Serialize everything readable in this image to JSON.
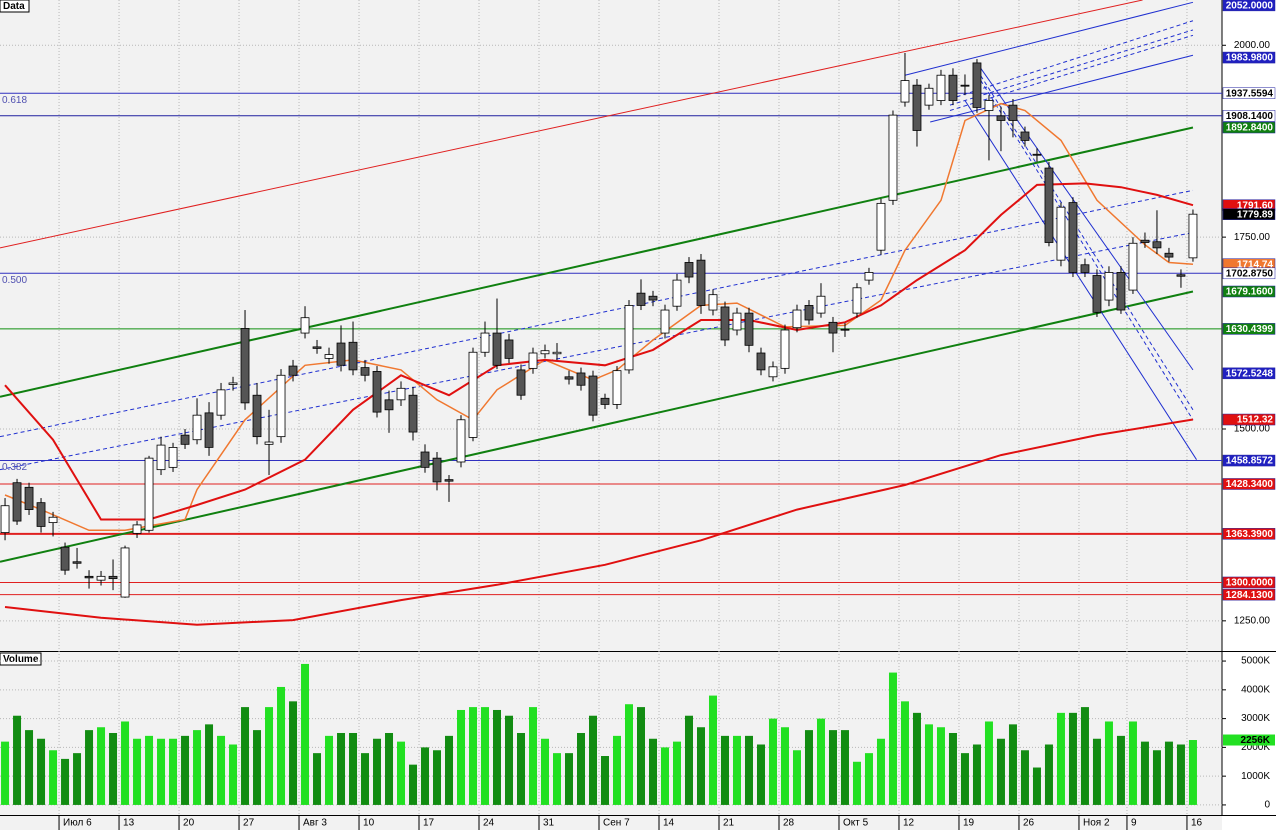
{
  "chart_data": {
    "type": "candlestick",
    "title": "Data",
    "up_color": "#ffffff",
    "down_color": "#555555",
    "candles": [
      [
        1365,
        1410,
        1355,
        1400
      ],
      [
        1430,
        1435,
        1375,
        1380
      ],
      [
        1424,
        1430,
        1388,
        1395
      ],
      [
        1404,
        1410,
        1365,
        1373
      ],
      [
        1378,
        1392,
        1360,
        1385
      ],
      [
        1346,
        1352,
        1310,
        1316
      ],
      [
        1327,
        1345,
        1318,
        1325
      ],
      [
        1308,
        1316,
        1292,
        1306
      ],
      [
        1303,
        1315,
        1296,
        1308
      ],
      [
        1308,
        1330,
        1290,
        1305
      ],
      [
        1281,
        1348,
        1280,
        1345
      ],
      [
        1364,
        1380,
        1358,
        1375
      ],
      [
        1368,
        1465,
        1365,
        1462
      ],
      [
        1447,
        1490,
        1440,
        1479
      ],
      [
        1450,
        1482,
        1444,
        1476
      ],
      [
        1492,
        1500,
        1474,
        1480
      ],
      [
        1486,
        1540,
        1480,
        1518
      ],
      [
        1521,
        1535,
        1465,
        1476
      ],
      [
        1518,
        1560,
        1512,
        1551
      ],
      [
        1558,
        1568,
        1550,
        1560
      ],
      [
        1631,
        1655,
        1525,
        1534
      ],
      [
        1544,
        1560,
        1480,
        1490
      ],
      [
        1480,
        1525,
        1440,
        1483
      ],
      [
        1490,
        1578,
        1482,
        1570
      ],
      [
        1582,
        1590,
        1562,
        1570
      ],
      [
        1625,
        1660,
        1618,
        1645
      ],
      [
        1607,
        1616,
        1598,
        1605
      ],
      [
        1592,
        1606,
        1585,
        1597
      ],
      [
        1612,
        1635,
        1575,
        1583
      ],
      [
        1613,
        1640,
        1570,
        1577
      ],
      [
        1580,
        1590,
        1562,
        1570
      ],
      [
        1575,
        1582,
        1515,
        1522
      ],
      [
        1538,
        1550,
        1495,
        1525
      ],
      [
        1538,
        1562,
        1530,
        1553
      ],
      [
        1544,
        1555,
        1485,
        1496
      ],
      [
        1470,
        1480,
        1443,
        1450
      ],
      [
        1462,
        1470,
        1420,
        1431
      ],
      [
        1434,
        1440,
        1405,
        1432
      ],
      [
        1457,
        1518,
        1450,
        1512
      ],
      [
        1489,
        1606,
        1484,
        1600
      ],
      [
        1600,
        1640,
        1594,
        1625
      ],
      [
        1625,
        1670,
        1578,
        1583
      ],
      [
        1616,
        1624,
        1586,
        1592
      ],
      [
        1577,
        1584,
        1538,
        1544
      ],
      [
        1579,
        1606,
        1572,
        1599
      ],
      [
        1598,
        1610,
        1592,
        1602
      ],
      [
        1598,
        1612,
        1590,
        1600
      ],
      [
        1568,
        1576,
        1558,
        1565
      ],
      [
        1573,
        1580,
        1550,
        1557
      ],
      [
        1569,
        1576,
        1510,
        1518
      ],
      [
        1540,
        1546,
        1526,
        1532
      ],
      [
        1532,
        1582,
        1526,
        1576
      ],
      [
        1577,
        1668,
        1572,
        1661
      ],
      [
        1677,
        1695,
        1655,
        1661
      ],
      [
        1673,
        1680,
        1660,
        1668
      ],
      [
        1625,
        1662,
        1618,
        1655
      ],
      [
        1660,
        1702,
        1654,
        1694
      ],
      [
        1717,
        1724,
        1690,
        1698
      ],
      [
        1720,
        1728,
        1650,
        1661
      ],
      [
        1655,
        1682,
        1648,
        1675
      ],
      [
        1659,
        1666,
        1608,
        1616
      ],
      [
        1629,
        1658,
        1622,
        1651
      ],
      [
        1651,
        1658,
        1600,
        1609
      ],
      [
        1599,
        1606,
        1570,
        1577
      ],
      [
        1568,
        1588,
        1562,
        1581
      ],
      [
        1579,
        1636,
        1572,
        1629
      ],
      [
        1632,
        1662,
        1626,
        1655
      ],
      [
        1661,
        1668,
        1636,
        1642
      ],
      [
        1651,
        1690,
        1645,
        1673
      ],
      [
        1639,
        1646,
        1600,
        1625
      ],
      [
        1630,
        1638,
        1620,
        1629
      ],
      [
        1651,
        1690,
        1645,
        1684
      ],
      [
        1694,
        1710,
        1688,
        1704
      ],
      [
        1733,
        1800,
        1727,
        1794
      ],
      [
        1798,
        1915,
        1792,
        1909
      ],
      [
        1926,
        1990,
        1920,
        1954
      ],
      [
        1948,
        1956,
        1868,
        1889
      ],
      [
        1922,
        1950,
        1916,
        1944
      ],
      [
        1928,
        1968,
        1922,
        1961
      ],
      [
        1961,
        1970,
        1922,
        1928
      ],
      [
        1948,
        1962,
        1935,
        1947
      ],
      [
        1977,
        1982,
        1912,
        1919
      ],
      [
        1915,
        1935,
        1850,
        1928
      ],
      [
        1908,
        1920,
        1862,
        1902
      ],
      [
        1922,
        1930,
        1880,
        1902
      ],
      [
        1887,
        1894,
        1868,
        1876
      ],
      [
        1858,
        1866,
        1848,
        1857
      ],
      [
        1840,
        1848,
        1738,
        1743
      ],
      [
        1720,
        1795,
        1712,
        1789
      ],
      [
        1795,
        1802,
        1698,
        1704
      ],
      [
        1714,
        1722,
        1698,
        1704
      ],
      [
        1700,
        1708,
        1646,
        1652
      ],
      [
        1668,
        1712,
        1660,
        1704
      ],
      [
        1704,
        1712,
        1650,
        1655
      ],
      [
        1681,
        1750,
        1676,
        1742
      ],
      [
        1746,
        1756,
        1736,
        1743
      ],
      [
        1744,
        1785,
        1728,
        1736
      ],
      [
        1729,
        1736,
        1718,
        1724
      ],
      [
        1701,
        1708,
        1684,
        1699
      ],
      [
        1723,
        1786,
        1718,
        1779.89
      ]
    ],
    "xlim": [
      -0.42,
      101.42
    ],
    "xticks": [
      {
        "value": 5,
        "label": "Июл 6"
      },
      {
        "value": 10,
        "label": "13"
      },
      {
        "value": 15,
        "label": "20"
      },
      {
        "value": 20,
        "label": "27"
      },
      {
        "value": 25,
        "label": "Авг 3"
      },
      {
        "value": 30,
        "label": "10"
      },
      {
        "value": 35,
        "label": "17"
      },
      {
        "value": 40,
        "label": "24"
      },
      {
        "value": 45,
        "label": "31"
      },
      {
        "value": 50,
        "label": "Сен 7"
      },
      {
        "value": 55,
        "label": "14"
      },
      {
        "value": 60,
        "label": "21"
      },
      {
        "value": 65,
        "label": "28"
      },
      {
        "value": 70,
        "label": "Окт 5"
      },
      {
        "value": 75,
        "label": "12"
      },
      {
        "value": 80,
        "label": "19"
      },
      {
        "value": 85,
        "label": "26"
      },
      {
        "value": 90,
        "label": "Ноя 2"
      },
      {
        "value": 94,
        "label": "9"
      },
      {
        "value": 99,
        "label": "16"
      }
    ],
    "ylim": [
      1212,
      2059
    ],
    "yticks": [
      {
        "value": 2000,
        "label": "2000.00"
      },
      {
        "value": 1750,
        "label": "1750.00"
      },
      {
        "value": 1500,
        "label": "1500.00"
      },
      {
        "value": 1250,
        "label": "1250.00"
      }
    ],
    "moving_averages": [
      {
        "color": "#f07830",
        "width": 1.5,
        "x": [
          0,
          3,
          7,
          10,
          15,
          16,
          20,
          25,
          29,
          33,
          36,
          39,
          41,
          45,
          49,
          51,
          54,
          58,
          61,
          65,
          70,
          73,
          75,
          78,
          80,
          83,
          85,
          88,
          91,
          95,
          97,
          99
        ],
        "values": [
          1414,
          1395,
          1368,
          1368,
          1382,
          1421,
          1512,
          1583,
          1590,
          1577,
          1538,
          1512,
          1551,
          1590,
          1564,
          1577,
          1616,
          1661,
          1664,
          1633,
          1635,
          1668,
          1733,
          1798,
          1902,
          1924,
          1915,
          1876,
          1798,
          1740,
          1717,
          1714.74
        ]
      },
      {
        "color": "#e01010",
        "width": 2,
        "x": [
          0,
          4,
          8,
          12,
          16,
          20,
          25,
          29,
          33,
          37,
          41,
          45,
          50,
          54,
          58,
          62,
          66,
          70,
          73,
          76,
          80,
          83,
          86,
          90,
          93,
          96,
          99
        ],
        "values": [
          1557,
          1486,
          1382,
          1382,
          1401,
          1421,
          1460,
          1525,
          1570,
          1544,
          1583,
          1590,
          1583,
          1603,
          1642,
          1642,
          1629,
          1639,
          1661,
          1694,
          1733,
          1779,
          1818,
          1820,
          1815,
          1805,
          1791.6
        ]
      },
      {
        "color": "#e01010",
        "width": 2,
        "x": [
          0,
          8,
          16,
          24,
          33,
          41,
          50,
          58,
          66,
          75,
          83,
          91,
          99
        ],
        "values": [
          1268,
          1254,
          1245,
          1251,
          1277,
          1297,
          1323,
          1355,
          1395,
          1427,
          1466,
          1492,
          1512.32
        ]
      }
    ],
    "trendlines": [
      {
        "color": "#e02020",
        "width": 1,
        "dash": false,
        "x": [
          -0.42,
          94.8
        ],
        "values": [
          1736,
          2059
        ]
      },
      {
        "color": "#108010",
        "width": 2,
        "dash": false,
        "x": [
          -0.42,
          99
        ],
        "values": [
          1542,
          1892.84
        ]
      },
      {
        "color": "#108010",
        "width": 2,
        "dash": false,
        "x": [
          -0.42,
          99
        ],
        "values": [
          1327,
          1679.16
        ]
      },
      {
        "color": "#2030d0",
        "width": 1,
        "dash": true,
        "x": [
          -0.42,
          99
        ],
        "values": [
          1490,
          1811
        ]
      },
      {
        "color": "#2030d0",
        "width": 1,
        "dash": true,
        "x": [
          -0.42,
          99
        ],
        "values": [
          1447,
          1756
        ]
      },
      {
        "color": "#2030d0",
        "width": 1,
        "dash": false,
        "x": [
          81,
          99
        ],
        "values": [
          1977,
          1577
        ]
      },
      {
        "color": "#2030d0",
        "width": 1,
        "dash": false,
        "x": [
          80,
          99.3
        ],
        "values": [
          1928,
          1460
        ]
      },
      {
        "color": "#2030d0",
        "width": 1,
        "dash": true,
        "x": [
          81,
          99
        ],
        "values": [
          1968,
          1525
        ]
      },
      {
        "color": "#2030d0",
        "width": 1,
        "dash": true,
        "x": [
          81,
          99
        ],
        "values": [
          1962,
          1512
        ]
      },
      {
        "color": "#2030d0",
        "width": 1,
        "dash": false,
        "x": [
          75,
          99
        ],
        "values": [
          1961,
          2056
        ]
      },
      {
        "color": "#2030d0",
        "width": 1,
        "dash": false,
        "x": [
          77.1,
          99
        ],
        "values": [
          1900,
          1987
        ]
      },
      {
        "color": "#2030d0",
        "width": 1,
        "dash": true,
        "x": [
          78.75,
          99
        ],
        "values": [
          1930,
          2032
        ]
      },
      {
        "color": "#2030d0",
        "width": 1,
        "dash": true,
        "x": [
          78.75,
          99
        ],
        "values": [
          1922,
          2020
        ]
      },
      {
        "color": "#2030d0",
        "width": 1,
        "dash": true,
        "x": [
          78.75,
          99
        ],
        "values": [
          1915,
          2013
        ]
      }
    ],
    "levels": [
      {
        "value": 1937.5594,
        "color": "#3030c0",
        "width": 1,
        "label": "0.618"
      },
      {
        "value": 1908.14,
        "color": "#2020a0",
        "width": 1
      },
      {
        "value": 1702.875,
        "color": "#3030c0",
        "width": 1,
        "label": "0.500"
      },
      {
        "value": 1630.4399,
        "color": "#109010",
        "width": 1
      },
      {
        "value": 1458.8572,
        "color": "#3030c0",
        "width": 1,
        "label": "0.382"
      },
      {
        "value": 1428.34,
        "color": "#e02020",
        "width": 1
      },
      {
        "value": 1363.39,
        "color": "#e02020",
        "width": 2
      },
      {
        "value": 1300,
        "color": "#e02020",
        "width": 1
      },
      {
        "value": 1284.13,
        "color": "#e02020",
        "width": 1
      }
    ],
    "price_labels": [
      {
        "value": 2052,
        "label": "2052.0000",
        "bg": "#2020c0",
        "fg": "#ffffff"
      },
      {
        "value": 1983.98,
        "label": "1983.9800",
        "bg": "#2020c0",
        "fg": "#ffffff"
      },
      {
        "value": 1937.5594,
        "label": "1937.5594",
        "bg": "#ffffff",
        "fg": "#000000"
      },
      {
        "value": 1908.14,
        "label": "1908.1400",
        "bg": "#ffffff",
        "fg": "#000000"
      },
      {
        "value": 1892.84,
        "label": "1892.8400",
        "bg": "#108010",
        "fg": "#ffffff"
      },
      {
        "value": 1791.6,
        "label": "1791.60",
        "bg": "#e01010",
        "fg": "#ffffff"
      },
      {
        "value": 1779.89,
        "label": "1779.89",
        "bg": "#000000",
        "fg": "#ffffff"
      },
      {
        "value": 1714.74,
        "label": "1714.74",
        "bg": "#f07830",
        "fg": "#ffffff"
      },
      {
        "value": 1702.875,
        "label": "1702.8750",
        "bg": "#ffffff",
        "fg": "#000000"
      },
      {
        "value": 1679.16,
        "label": "1679.1600",
        "bg": "#108010",
        "fg": "#ffffff"
      },
      {
        "value": 1630.4399,
        "label": "1630.4399",
        "bg": "#108010",
        "fg": "#ffffff"
      },
      {
        "value": 1572.5248,
        "label": "1572.5248",
        "bg": "#2020c0",
        "fg": "#ffffff"
      },
      {
        "value": 1512.32,
        "label": "1512.32",
        "bg": "#e01010",
        "fg": "#ffffff"
      },
      {
        "value": 1458.8572,
        "label": "1458.8572",
        "bg": "#2020c0",
        "fg": "#ffffff"
      },
      {
        "value": 1428.34,
        "label": "1428.3400",
        "bg": "#e01010",
        "fg": "#ffffff"
      },
      {
        "value": 1363.39,
        "label": "1363.3900",
        "bg": "#e01010",
        "fg": "#ffffff"
      },
      {
        "value": 1300,
        "label": "1300.0000",
        "bg": "#e01010",
        "fg": "#ffffff"
      },
      {
        "value": 1284.13,
        "label": "1284.1300",
        "bg": "#e01010",
        "fg": "#ffffff"
      }
    ],
    "volume": {
      "title": "Volume",
      "up_color": "#22e022",
      "down_color": "#128c12",
      "values": [
        2200,
        3100,
        2600,
        2300,
        1900,
        1600,
        1800,
        2600,
        2700,
        2500,
        2900,
        2300,
        2400,
        2300,
        2300,
        2400,
        2600,
        2800,
        2400,
        2100,
        3400,
        2600,
        3400,
        4100,
        3600,
        4900,
        1800,
        2400,
        2500,
        2500,
        1800,
        2300,
        2500,
        2200,
        1400,
        2000,
        1900,
        2400,
        3300,
        3400,
        3400,
        3300,
        3100,
        2500,
        3400,
        2300,
        1800,
        1800,
        2500,
        3100,
        1700,
        2400,
        3500,
        3400,
        2300,
        2000,
        2200,
        3100,
        2700,
        3800,
        2400,
        2400,
        2400,
        2100,
        3000,
        2700,
        1900,
        2600,
        3000,
        2600,
        2600,
        1500,
        1800,
        2300,
        4600,
        3600,
        3200,
        2800,
        2700,
        2500,
        1800,
        2100,
        2900,
        2300,
        2800,
        1900,
        1300,
        2100,
        3200,
        3200,
        3400,
        2300,
        2900,
        2400,
        2900,
        2200,
        1900,
        2200,
        2100,
        2256
      ],
      "last_value_label": "2256K",
      "ylim": [
        -350,
        5280
      ],
      "yticks": [
        {
          "value": 5000,
          "label": "5000K"
        },
        {
          "value": 4000,
          "label": "4000K"
        },
        {
          "value": 3000,
          "label": "3000K"
        },
        {
          "value": 2000,
          "label": "2000K"
        },
        {
          "value": 1000,
          "label": "1000K"
        },
        0
      ]
    }
  }
}
